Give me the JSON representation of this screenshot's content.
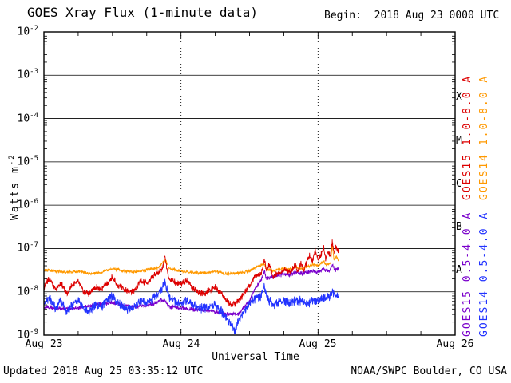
{
  "header": {
    "title": "GOES Xray Flux (1-minute data)",
    "begin": "Begin:  2018 Aug 23 0000 UTC"
  },
  "labels": {
    "ylabel_base": "Watts m",
    "ylabel_sup": "-2"
  },
  "footer": {
    "updated": "Updated 2018 Aug 25 03:35:12 UTC",
    "credit": "NOAA/SWPC Boulder, CO USA"
  },
  "colors": {
    "background": "#ffffff",
    "axis": "#000000",
    "goes15_long": "#dd0000",
    "goes14_long": "#ff9900",
    "goes15_short": "#7a00cc",
    "goes14_short": "#2233ff"
  },
  "chart_data": {
    "type": "line",
    "title": "GOES Xray Flux (1-minute data)",
    "xlabel": "Universal Time",
    "ylabel": "Watts m^-2",
    "x_range_hours": [
      0,
      72
    ],
    "data_end_hours": 51.58,
    "x_tick_hours": [
      0,
      24,
      48,
      72
    ],
    "x_tick_labels": [
      "Aug 23",
      "Aug 24",
      "Aug 25",
      "Aug 26"
    ],
    "y_log_range": [
      -9,
      -2
    ],
    "y_tick_exponents": [
      -2,
      -3,
      -4,
      -5,
      -6,
      -7,
      -8,
      -9
    ],
    "grid": {
      "horizontal_decades": [
        -3,
        -4,
        -5,
        -6,
        -7,
        -8
      ],
      "vertical_dotted_hours": [
        24,
        48
      ]
    },
    "flare_classes": [
      {
        "label": "X",
        "log_mid": -3.5
      },
      {
        "label": "M",
        "log_mid": -4.5
      },
      {
        "label": "C",
        "log_mid": -5.5
      },
      {
        "label": "B",
        "log_mid": -6.5
      },
      {
        "label": "A",
        "log_mid": -7.5
      }
    ],
    "legend_position": "right-rotated",
    "series": [
      {
        "name": "GOES15 1.0-8.0 A",
        "color": "#dd0000",
        "noise_log10": 0.09,
        "points": [
          [
            0,
            1.3e-08
          ],
          [
            1,
            2e-08
          ],
          [
            2,
            1.1e-08
          ],
          [
            3,
            1.6e-08
          ],
          [
            4,
            9e-09
          ],
          [
            5,
            1.4e-08
          ],
          [
            6,
            1.8e-08
          ],
          [
            7,
            1e-08
          ],
          [
            8,
            9e-09
          ],
          [
            9,
            1.3e-08
          ],
          [
            10,
            1.1e-08
          ],
          [
            11,
            1.6e-08
          ],
          [
            12,
            2.2e-08
          ],
          [
            13,
            1.4e-08
          ],
          [
            14,
            1.2e-08
          ],
          [
            15,
            1e-08
          ],
          [
            16,
            1.1e-08
          ],
          [
            17,
            1.8e-08
          ],
          [
            18,
            1.5e-08
          ],
          [
            19,
            2.2e-08
          ],
          [
            20,
            2.8e-08
          ],
          [
            20.8,
            3.5e-08
          ],
          [
            21.2,
            7e-08
          ],
          [
            21.6,
            3e-08
          ],
          [
            22,
            2e-08
          ],
          [
            23,
            1.6e-08
          ],
          [
            24,
            1.5e-08
          ],
          [
            25,
            1.8e-08
          ],
          [
            26,
            1.2e-08
          ],
          [
            27,
            1e-08
          ],
          [
            28,
            9e-09
          ],
          [
            29,
            1.1e-08
          ],
          [
            30,
            1.3e-08
          ],
          [
            31,
            9e-09
          ],
          [
            32,
            6e-09
          ],
          [
            33,
            5e-09
          ],
          [
            34,
            6e-09
          ],
          [
            35,
            9e-09
          ],
          [
            36,
            1.4e-08
          ],
          [
            37,
            2.2e-08
          ],
          [
            38,
            2.6e-08
          ],
          [
            38.6,
            5.5e-08
          ],
          [
            39,
            3e-08
          ],
          [
            39.5,
            4.5e-08
          ],
          [
            40,
            2.2e-08
          ],
          [
            41,
            2.6e-08
          ],
          [
            42,
            3.2e-08
          ],
          [
            43,
            2.8e-08
          ],
          [
            44,
            4e-08
          ],
          [
            44.5,
            3e-08
          ],
          [
            45,
            4.5e-08
          ],
          [
            45.5,
            3.2e-08
          ],
          [
            46,
            5e-08
          ],
          [
            46.5,
            7e-08
          ],
          [
            47,
            5e-08
          ],
          [
            47.5,
            9e-08
          ],
          [
            48,
            5.5e-08
          ],
          [
            48.5,
            7e-08
          ],
          [
            49,
            1e-07
          ],
          [
            49.3,
            6e-08
          ],
          [
            49.8,
            8e-08
          ],
          [
            50.2,
            6.5e-08
          ],
          [
            50.5,
            1.5e-07
          ],
          [
            50.8,
            8e-08
          ],
          [
            51.2,
            1.1e-07
          ],
          [
            51.58,
            9e-08
          ]
        ]
      },
      {
        "name": "GOES14 1.0-8.0 A",
        "color": "#ff9900",
        "noise_log10": 0.045,
        "points": [
          [
            0,
            3.2e-08
          ],
          [
            2,
            3e-08
          ],
          [
            4,
            2.8e-08
          ],
          [
            6,
            3e-08
          ],
          [
            8,
            2.6e-08
          ],
          [
            10,
            2.8e-08
          ],
          [
            12,
            3.4e-08
          ],
          [
            14,
            3e-08
          ],
          [
            16,
            2.8e-08
          ],
          [
            18,
            3.2e-08
          ],
          [
            20,
            3.6e-08
          ],
          [
            21.2,
            5.5e-08
          ],
          [
            22,
            3.4e-08
          ],
          [
            24,
            3e-08
          ],
          [
            26,
            2.8e-08
          ],
          [
            28,
            2.7e-08
          ],
          [
            30,
            3e-08
          ],
          [
            32,
            2.6e-08
          ],
          [
            34,
            2.7e-08
          ],
          [
            36,
            3e-08
          ],
          [
            37,
            3.6e-08
          ],
          [
            38.6,
            4.5e-08
          ],
          [
            39,
            3.4e-08
          ],
          [
            40,
            3e-08
          ],
          [
            41,
            3.2e-08
          ],
          [
            42,
            3.4e-08
          ],
          [
            43,
            3.2e-08
          ],
          [
            44,
            3.8e-08
          ],
          [
            45,
            3.4e-08
          ],
          [
            46,
            3.8e-08
          ],
          [
            47,
            4.2e-08
          ],
          [
            48,
            4e-08
          ],
          [
            49,
            5e-08
          ],
          [
            49.5,
            4.2e-08
          ],
          [
            50.2,
            4.5e-08
          ],
          [
            50.5,
            1.25e-07
          ],
          [
            50.8,
            5.5e-08
          ],
          [
            51.2,
            6.5e-08
          ],
          [
            51.58,
            5e-08
          ]
        ]
      },
      {
        "name": "GOES15 0.5-4.0 A",
        "color": "#7a00cc",
        "noise_log10": 0.06,
        "points": [
          [
            0,
            4.5e-09
          ],
          [
            3,
            4e-09
          ],
          [
            6,
            4.2e-09
          ],
          [
            9,
            5e-09
          ],
          [
            12,
            5.5e-09
          ],
          [
            15,
            4.5e-09
          ],
          [
            18,
            4.8e-09
          ],
          [
            21,
            6.5e-09
          ],
          [
            22,
            4.5e-09
          ],
          [
            24,
            4.2e-09
          ],
          [
            27,
            3.8e-09
          ],
          [
            30,
            3.5e-09
          ],
          [
            32,
            3e-09
          ],
          [
            34,
            3e-09
          ],
          [
            36,
            6e-09
          ],
          [
            37,
            1.2e-08
          ],
          [
            38,
            1.8e-08
          ],
          [
            38.6,
            3e-08
          ],
          [
            39,
            2e-08
          ],
          [
            40,
            2.2e-08
          ],
          [
            41,
            2.4e-08
          ],
          [
            42,
            2.6e-08
          ],
          [
            43,
            2.4e-08
          ],
          [
            44,
            2.8e-08
          ],
          [
            45,
            2.6e-08
          ],
          [
            46,
            2.8e-08
          ],
          [
            47,
            3e-08
          ],
          [
            48,
            2.8e-08
          ],
          [
            49,
            3.4e-08
          ],
          [
            50,
            3e-08
          ],
          [
            50.5,
            4.2e-08
          ],
          [
            51,
            3.2e-08
          ],
          [
            51.58,
            3.5e-08
          ]
        ]
      },
      {
        "name": "GOES14 0.5-4.0 A",
        "color": "#2233ff",
        "noise_log10": 0.13,
        "points": [
          [
            0,
            5e-09
          ],
          [
            1,
            7e-09
          ],
          [
            2,
            4.5e-09
          ],
          [
            3,
            6e-09
          ],
          [
            4,
            3.5e-09
          ],
          [
            5,
            5e-09
          ],
          [
            6,
            6.5e-09
          ],
          [
            7,
            4e-09
          ],
          [
            8,
            3.5e-09
          ],
          [
            9,
            5e-09
          ],
          [
            10,
            4.5e-09
          ],
          [
            11,
            6e-09
          ],
          [
            12,
            8e-09
          ],
          [
            13,
            5.5e-09
          ],
          [
            14,
            4.5e-09
          ],
          [
            15,
            4e-09
          ],
          [
            16,
            4.5e-09
          ],
          [
            17,
            6e-09
          ],
          [
            18,
            5.5e-09
          ],
          [
            19,
            7e-09
          ],
          [
            20,
            9e-09
          ],
          [
            21.2,
            1.6e-08
          ],
          [
            22,
            7e-09
          ],
          [
            23,
            6e-09
          ],
          [
            24,
            5.5e-09
          ],
          [
            25,
            6.5e-09
          ],
          [
            26,
            5e-09
          ],
          [
            27,
            4.5e-09
          ],
          [
            28,
            4e-09
          ],
          [
            29,
            4.5e-09
          ],
          [
            30,
            5e-09
          ],
          [
            31,
            3.5e-09
          ],
          [
            32,
            2.5e-09
          ],
          [
            33,
            1.6e-09
          ],
          [
            33.5,
            1.2e-09
          ],
          [
            34,
            2.2e-09
          ],
          [
            35,
            3.5e-09
          ],
          [
            36,
            5.5e-09
          ],
          [
            37,
            7e-09
          ],
          [
            38,
            8e-09
          ],
          [
            38.6,
            1.4e-08
          ],
          [
            39,
            8e-09
          ],
          [
            40,
            5e-09
          ],
          [
            41,
            5.5e-09
          ],
          [
            42,
            6e-09
          ],
          [
            43,
            5.5e-09
          ],
          [
            44,
            6.5e-09
          ],
          [
            45,
            6e-09
          ],
          [
            46,
            5.5e-09
          ],
          [
            47,
            6e-09
          ],
          [
            48,
            6.5e-09
          ],
          [
            49,
            7e-09
          ],
          [
            50,
            7.5e-09
          ],
          [
            50.5,
            1e-08
          ],
          [
            51,
            8e-09
          ],
          [
            51.58,
            8.5e-09
          ]
        ]
      }
    ]
  }
}
